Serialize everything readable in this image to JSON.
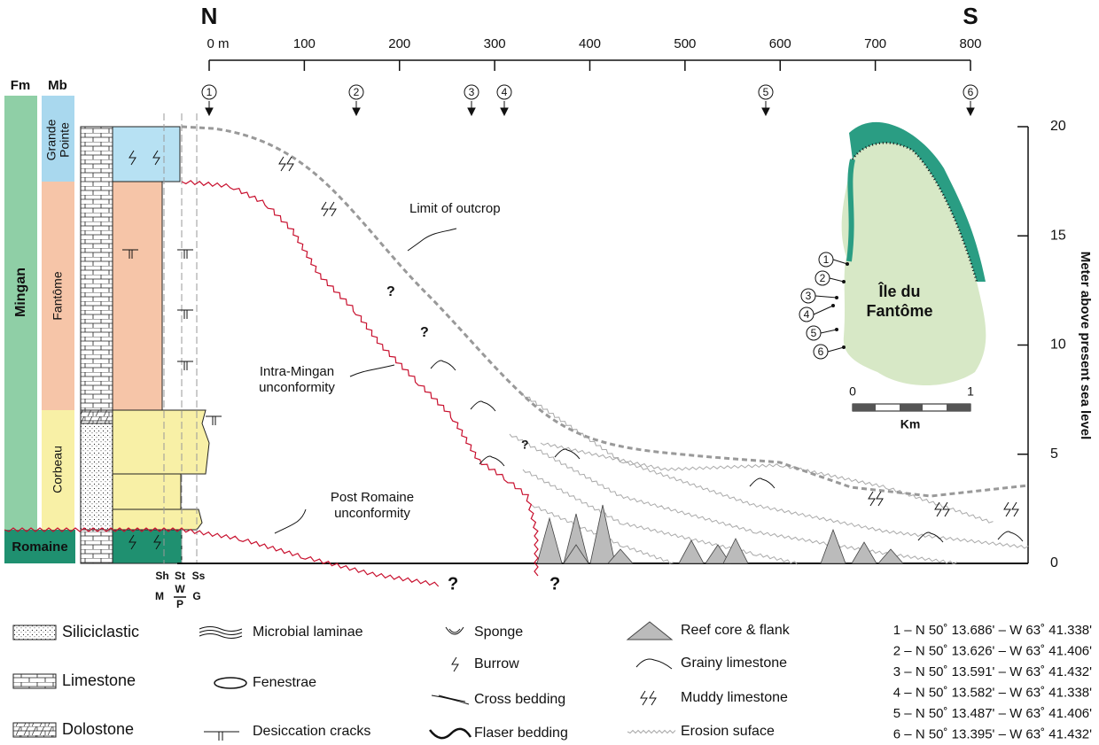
{
  "header": {
    "north": "N",
    "south": "S"
  },
  "distance_axis": {
    "ticks": [
      {
        "value": 0,
        "label": "0 m"
      },
      100,
      200,
      300,
      400,
      500,
      600,
      700,
      800
    ]
  },
  "height_axis": {
    "label": "Meter above present sea level",
    "ticks": [
      0,
      5,
      10,
      15,
      20
    ]
  },
  "stations": [
    {
      "label": "1"
    },
    {
      "label": "2"
    },
    {
      "label": "3"
    },
    {
      "label": "4"
    },
    {
      "label": "5"
    },
    {
      "label": "6"
    }
  ],
  "columns": {
    "formation_header": "Fm",
    "member_header": "Mb",
    "formations": [
      "Mingan",
      "Romaine"
    ],
    "members": [
      [
        "Grande",
        "Pointe"
      ],
      [
        "Fantôme"
      ],
      [
        "Corbeau"
      ],
      [
        "Romaine"
      ]
    ],
    "texture_top": [
      "Sh",
      "St",
      "Ss"
    ],
    "texture_bottom": [
      "M",
      "W",
      "P",
      "G"
    ]
  },
  "annotations": {
    "limit": "Limit of outcrop",
    "intra": [
      "Intra-Mingan",
      "unconformity"
    ],
    "post": [
      "Post Romaine",
      "unconformity"
    ],
    "question": "?"
  },
  "map": {
    "title": [
      "Île du",
      "Fantôme"
    ],
    "scale": [
      "0",
      "1"
    ],
    "unit": "Km"
  },
  "legend": [
    "Siliciclastic",
    "Limestone",
    "Dolostone",
    "Microbial laminae",
    "Fenestrae",
    "Desiccation cracks",
    "Sponge",
    "Burrow",
    "Cross bedding",
    "Flaser bedding",
    "Reef core & flank",
    "Grainy limestone",
    "Muddy limestone",
    "Erosion suface"
  ],
  "coordinates": [
    "1 – N 50˚ 13.686' – W 63˚ 41.338'",
    "2 – N 50˚ 13.626' – W 63˚ 41.406'",
    "3 – N 50˚ 13.591' – W 63˚ 41.432'",
    "4 – N 50˚ 13.582' – W 63˚ 41.338'",
    "5 – N 50˚ 13.487' – W 63˚ 41.406'",
    "6 – N 50˚ 13.395' – W 63˚ 41.432'"
  ]
}
